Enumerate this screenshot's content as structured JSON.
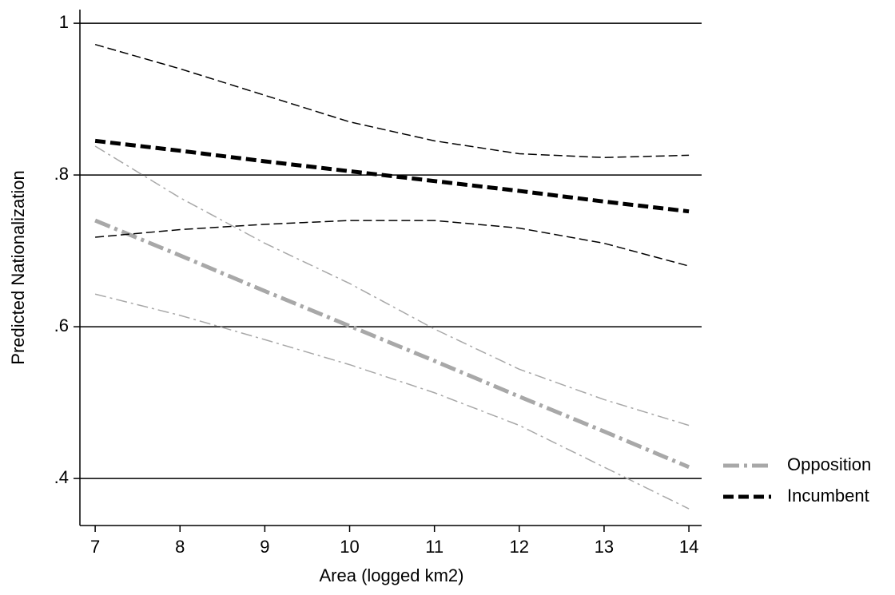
{
  "chart_data": {
    "type": "line",
    "x_label": "Area (logged km2)",
    "y_label": "Predicted Nationalization",
    "x": [
      7,
      8,
      9,
      10,
      11,
      12,
      13,
      14
    ],
    "series": [
      {
        "name": "Opposition",
        "color": "#a8a8a8",
        "values": [
          0.74,
          0.694,
          0.647,
          0.601,
          0.555,
          0.508,
          0.462,
          0.415
        ],
        "ci_upper": [
          0.838,
          0.77,
          0.71,
          0.657,
          0.597,
          0.544,
          0.504,
          0.47
        ],
        "ci_lower": [
          0.643,
          0.615,
          0.583,
          0.55,
          0.513,
          0.47,
          0.415,
          0.36
        ]
      },
      {
        "name": "Incumbent",
        "color": "#000000",
        "values": [
          0.845,
          0.832,
          0.818,
          0.805,
          0.792,
          0.779,
          0.765,
          0.752
        ],
        "ci_upper": [
          0.972,
          0.94,
          0.905,
          0.87,
          0.845,
          0.828,
          0.823,
          0.826
        ],
        "ci_lower": [
          0.718,
          0.728,
          0.735,
          0.74,
          0.74,
          0.73,
          0.71,
          0.68
        ]
      }
    ],
    "xlim": [
      6.82,
      14.15
    ],
    "ylim": [
      0.338,
      1.018
    ],
    "xticks": [
      7,
      8,
      9,
      10,
      11,
      12,
      13,
      14
    ],
    "yticks": [
      {
        "value": 0.4,
        "label": ".4"
      },
      {
        "value": 0.6,
        "label": ".6"
      },
      {
        "value": 0.8,
        "label": ".8"
      },
      1
    ],
    "grid": true,
    "legend": "right"
  }
}
